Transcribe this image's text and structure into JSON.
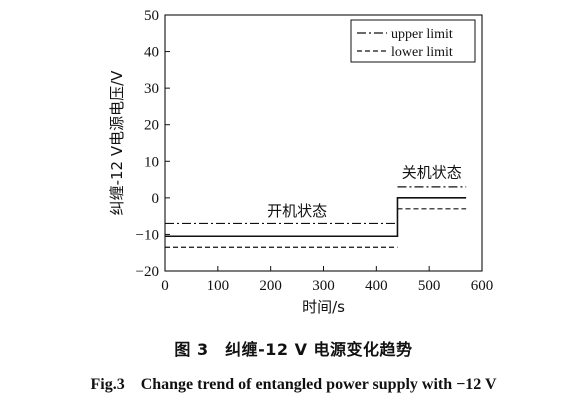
{
  "chart_data": {
    "type": "line",
    "title": "",
    "xlabel": "时间/s",
    "ylabel": "纠缠-12 V电源电压/V",
    "xlim": [
      0,
      600
    ],
    "ylim": [
      -20,
      50
    ],
    "xticks": [
      0,
      100,
      200,
      300,
      400,
      500,
      600
    ],
    "yticks": [
      -20,
      -10,
      0,
      10,
      20,
      30,
      40,
      50
    ],
    "grid": false,
    "legend_position": "top-right",
    "legend": [
      {
        "label": "upper limit",
        "style": "dashdot"
      },
      {
        "label": "lower limit",
        "style": "dashed"
      }
    ],
    "series": [
      {
        "style": "solid",
        "x": [
          0,
          440,
          440,
          570
        ],
        "y": [
          -10.5,
          -10.5,
          0,
          0
        ]
      },
      {
        "name": "upper limit",
        "style": "dashdot",
        "segments": [
          {
            "x": [
              0,
              440
            ],
            "y": [
              -7,
              -7
            ]
          },
          {
            "x": [
              440,
              570
            ],
            "y": [
              3,
              3
            ]
          }
        ]
      },
      {
        "name": "lower limit",
        "style": "dashed",
        "segments": [
          {
            "x": [
              0,
              440
            ],
            "y": [
              -13.5,
              -13.5
            ]
          },
          {
            "x": [
              440,
              570
            ],
            "y": [
              -3,
              -3
            ]
          }
        ]
      }
    ],
    "annotations": [
      {
        "text": "开机状态",
        "x": 250,
        "y": -5
      },
      {
        "text": "关机状态",
        "x": 505,
        "y": 5.5
      }
    ]
  },
  "caption": {
    "cn": "图 3　纠缠-12 V 电源变化趋势",
    "en": "Fig.3　Change trend of entangled power supply with −12 V"
  }
}
